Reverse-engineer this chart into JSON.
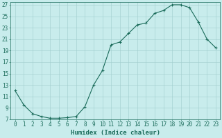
{
  "x": [
    0,
    1,
    2,
    3,
    4,
    5,
    6,
    7,
    8,
    9,
    10,
    11,
    12,
    13,
    14,
    15,
    16,
    17,
    18,
    19,
    20,
    21,
    22,
    23
  ],
  "y": [
    12,
    9.5,
    8,
    7.5,
    7.2,
    7.2,
    7.3,
    7.5,
    9.2,
    13,
    15.5,
    20,
    20.5,
    22,
    23.5,
    23.8,
    25.5,
    26,
    27,
    27,
    26.5,
    24,
    21,
    19.5
  ],
  "line_color": "#1a6b5a",
  "marker": "+",
  "marker_size": 3,
  "marker_linewidth": 0.8,
  "bg_color": "#c8ecec",
  "grid_color": "#a0cccc",
  "xlabel": "Humidex (Indice chaleur)",
  "ylabel": "",
  "title": "",
  "xlim": [
    -0.5,
    23.5
  ],
  "ylim": [
    7,
    27.5
  ],
  "yticks": [
    7,
    9,
    11,
    13,
    15,
    17,
    19,
    21,
    23,
    25,
    27
  ],
  "xticks": [
    0,
    1,
    2,
    3,
    4,
    5,
    6,
    7,
    8,
    9,
    10,
    11,
    12,
    13,
    14,
    15,
    16,
    17,
    18,
    19,
    20,
    21,
    22,
    23
  ],
  "tick_label_fontsize": 5.5,
  "xlabel_fontsize": 6.5,
  "linewidth": 0.8
}
